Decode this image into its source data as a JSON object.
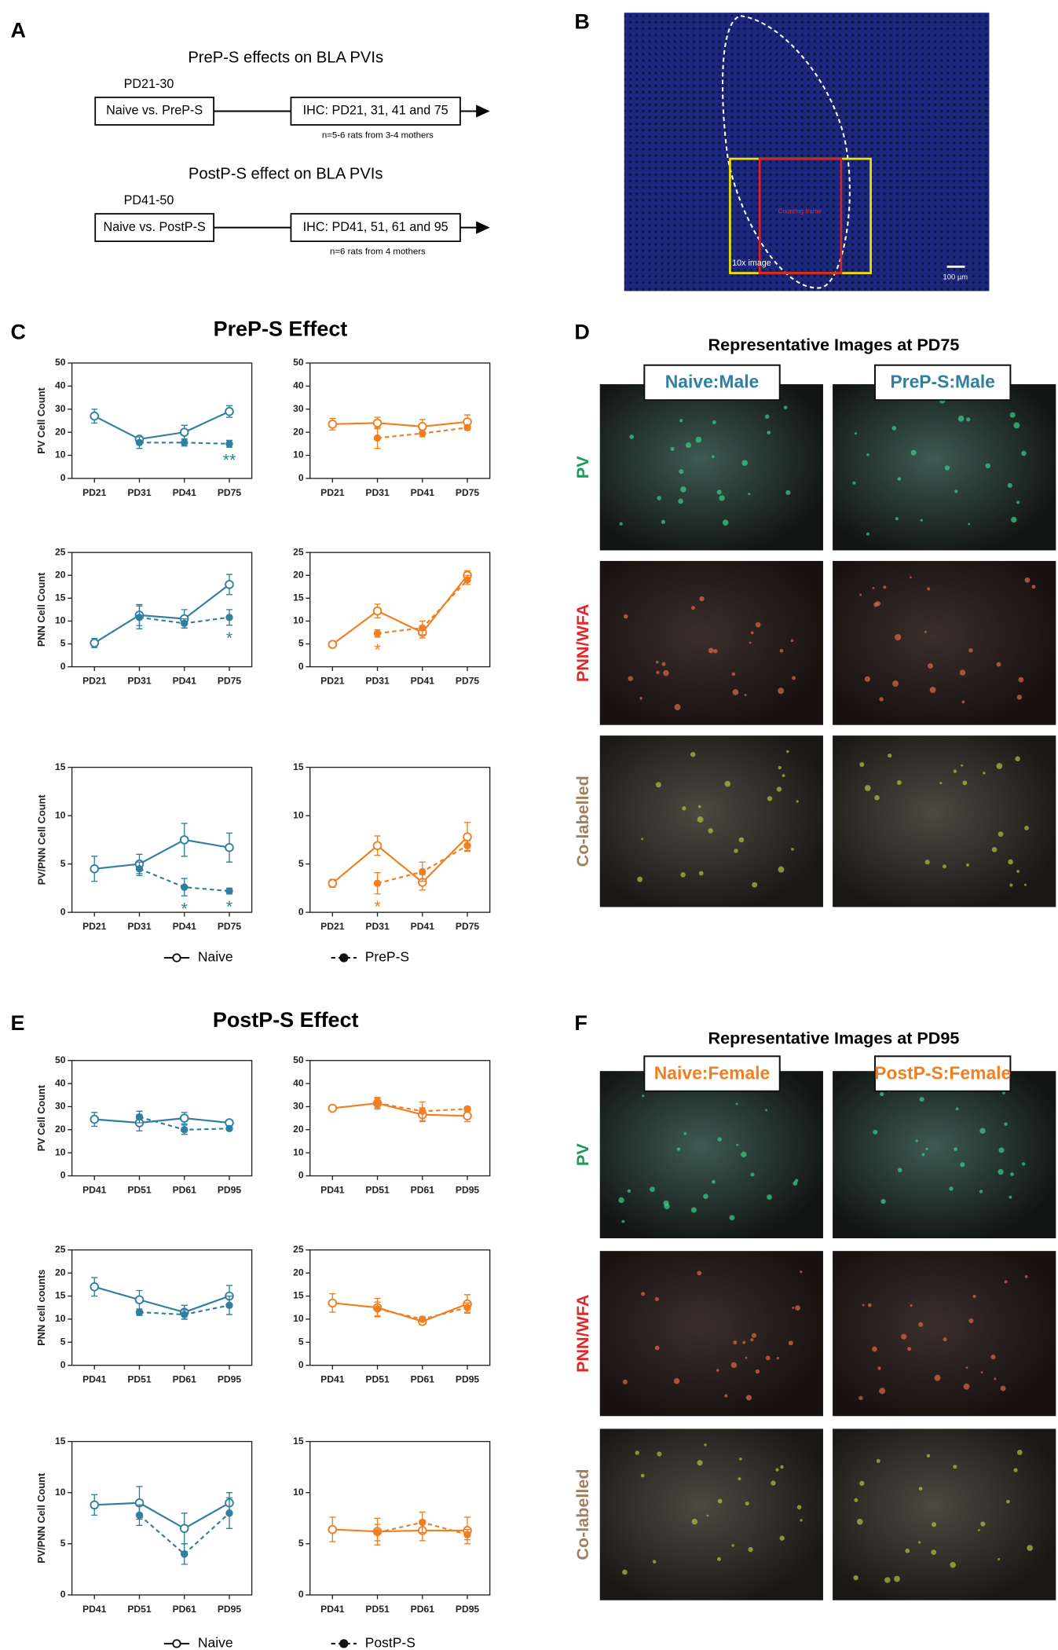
{
  "panel_labels": [
    "A",
    "B",
    "C",
    "D",
    "E",
    "F"
  ],
  "diagram_a": {
    "blocks": [
      {
        "title": "PreP-S effects on BLA PVIs",
        "period": "PD21-30",
        "group": "Naive vs. PreP-S",
        "ihc": "IHC: PD21, 31, 41 and 75",
        "n": "n=5-6 rats from 3-4 mothers"
      },
      {
        "title": "PostP-S effect on BLA PVIs",
        "period": "PD41-50",
        "group": "Naive vs. PostP-S",
        "ihc": "IHC: PD41, 51, 61 and 95",
        "n": "n=6 rats from 4 mothers"
      }
    ]
  },
  "image_b": {
    "frame_label": "Counting frame",
    "image_label": "10x image",
    "scale_label": "100 µm"
  },
  "section_titles": {
    "c": "PreP-S Effect",
    "e": "PostP-S Effect"
  },
  "legends": [
    {
      "items": [
        {
          "label": "Naive",
          "marker": "open",
          "dash": false
        },
        {
          "label": "PreP-S",
          "marker": "filled",
          "dash": true
        }
      ]
    },
    {
      "items": [
        {
          "label": "Naive",
          "marker": "open",
          "dash": false
        },
        {
          "label": "PostP-S",
          "marker": "filled",
          "dash": true
        }
      ]
    }
  ],
  "panel_d": {
    "title": "Representative Images at PD75",
    "columns": [
      "Naive:Male",
      "PreP-S:Male"
    ],
    "column_color": "#2f7fa0",
    "rows": [
      "PV",
      "PNN/WFA",
      "Co-labelled"
    ]
  },
  "panel_f": {
    "title": "Representative Images at PD95",
    "columns": [
      "Naive:Female",
      "PostP-S:Female"
    ],
    "column_color": "#f07f22",
    "rows": [
      "PV",
      "PNN/WFA",
      "Co-labelled"
    ]
  },
  "chart_data": [
    {
      "type": "line",
      "ylabel": "PV Cell Count",
      "categories": [
        "PD21",
        "PD31",
        "PD41",
        "PD75"
      ],
      "ylim": [
        0,
        50
      ],
      "yticks": [
        0,
        10,
        20,
        30,
        40,
        50
      ],
      "series": [
        {
          "color": "#2f7fa0",
          "marker": "open",
          "dash": false,
          "values": [
            27,
            17,
            20,
            29
          ],
          "errors": [
            3,
            1,
            3,
            2.5
          ]
        },
        {
          "color": "#2f7fa0",
          "marker": "filled",
          "dash": true,
          "values": [
            null,
            15.5,
            15.5,
            15
          ],
          "errors": [
            null,
            2.5,
            1.5,
            1.5
          ]
        }
      ],
      "annotations": [
        {
          "text": "**",
          "category": 3
        }
      ]
    },
    {
      "type": "line",
      "categories": [
        "PD21",
        "PD31",
        "PD41",
        "PD75"
      ],
      "ylim": [
        0,
        50
      ],
      "yticks": [
        0,
        10,
        20,
        30,
        40,
        50
      ],
      "series": [
        {
          "color": "#f07f22",
          "marker": "open",
          "dash": false,
          "values": [
            23.5,
            24,
            22.5,
            24.5
          ],
          "errors": [
            2.5,
            2.5,
            3,
            3
          ]
        },
        {
          "color": "#f07f22",
          "marker": "filled",
          "dash": true,
          "values": [
            null,
            17.5,
            19.5,
            22
          ],
          "errors": [
            null,
            4.5,
            1.5,
            1
          ]
        }
      ],
      "annotations": []
    },
    {
      "type": "line",
      "ylabel": "PNN Cell Count",
      "categories": [
        "PD21",
        "PD31",
        "PD41",
        "PD75"
      ],
      "ylim": [
        0,
        25
      ],
      "yticks": [
        0,
        5,
        10,
        15,
        20,
        25
      ],
      "series": [
        {
          "color": "#2f7fa0",
          "marker": "open",
          "dash": false,
          "values": [
            5.2,
            11.3,
            10.5,
            18
          ],
          "errors": [
            1,
            2.3,
            2,
            2.2
          ]
        },
        {
          "color": "#2f7fa0",
          "marker": "filled",
          "dash": true,
          "values": [
            null,
            10.8,
            9.5,
            10.8
          ],
          "errors": [
            null,
            2.5,
            1,
            1.7
          ]
        }
      ],
      "annotations": [
        {
          "text": "*",
          "category": 3
        }
      ]
    },
    {
      "type": "line",
      "categories": [
        "PD21",
        "PD31",
        "PD41",
        "PD75"
      ],
      "ylim": [
        0,
        25
      ],
      "yticks": [
        0,
        5,
        10,
        15,
        20,
        25
      ],
      "series": [
        {
          "color": "#f07f22",
          "marker": "open",
          "dash": false,
          "values": [
            4.9,
            12.2,
            7.5,
            20
          ],
          "errors": [
            0.5,
            1.5,
            1.2,
            1
          ]
        },
        {
          "color": "#f07f22",
          "marker": "filled",
          "dash": true,
          "values": [
            null,
            7.3,
            8.5,
            19
          ],
          "errors": [
            null,
            0.8,
            1.5,
            1
          ]
        }
      ],
      "annotations": [
        {
          "text": "*",
          "category": 1
        }
      ]
    },
    {
      "type": "line",
      "ylabel": "PV/PNN Cell Count",
      "categories": [
        "PD21",
        "PD31",
        "PD41",
        "PD75"
      ],
      "ylim": [
        0,
        15
      ],
      "yticks": [
        0,
        5,
        10,
        15
      ],
      "series": [
        {
          "color": "#2f7fa0",
          "marker": "open",
          "dash": false,
          "values": [
            4.5,
            5,
            7.5,
            6.7
          ],
          "errors": [
            1.3,
            1,
            1.7,
            1.5
          ]
        },
        {
          "color": "#2f7fa0",
          "marker": "filled",
          "dash": true,
          "values": [
            null,
            4.5,
            2.6,
            2.2
          ],
          "errors": [
            null,
            0.7,
            0.9,
            0.3
          ]
        }
      ],
      "annotations": [
        {
          "text": "*",
          "category": 2
        },
        {
          "text": "*",
          "category": 3
        }
      ]
    },
    {
      "type": "line",
      "categories": [
        "PD21",
        "PD31",
        "PD41",
        "PD75"
      ],
      "ylim": [
        0,
        15
      ],
      "yticks": [
        0,
        5,
        10,
        15
      ],
      "series": [
        {
          "color": "#f07f22",
          "marker": "open",
          "dash": false,
          "values": [
            3,
            6.9,
            3.1,
            7.8
          ],
          "errors": [
            0.4,
            1,
            0.8,
            1.5
          ]
        },
        {
          "color": "#f07f22",
          "marker": "filled",
          "dash": true,
          "values": [
            null,
            3,
            4.2,
            6.9
          ],
          "errors": [
            null,
            1.1,
            1,
            0.5
          ]
        }
      ],
      "annotations": [
        {
          "text": "*",
          "category": 1
        }
      ]
    },
    {
      "type": "line",
      "ylabel": "PV Cell Count",
      "categories": [
        "PD41",
        "PD51",
        "PD61",
        "PD95"
      ],
      "ylim": [
        0,
        50
      ],
      "yticks": [
        0,
        10,
        20,
        30,
        40,
        50
      ],
      "series": [
        {
          "color": "#2f7fa0",
          "marker": "open",
          "dash": false,
          "values": [
            24.5,
            23,
            25,
            23
          ],
          "errors": [
            3,
            3.5,
            2.5,
            0.5
          ]
        },
        {
          "color": "#2f7fa0",
          "marker": "filled",
          "dash": true,
          "values": [
            null,
            25.5,
            20,
            20.5
          ],
          "errors": [
            null,
            2.5,
            2,
            0.5
          ]
        }
      ],
      "annotations": []
    },
    {
      "type": "line",
      "categories": [
        "PD41",
        "PD51",
        "PD61",
        "PD95"
      ],
      "ylim": [
        0,
        50
      ],
      "yticks": [
        0,
        10,
        20,
        30,
        40,
        50
      ],
      "series": [
        {
          "color": "#f07f22",
          "marker": "open",
          "dash": false,
          "values": [
            29.3,
            31.5,
            26.5,
            26
          ],
          "errors": [
            0.5,
            2.5,
            3,
            2.5
          ]
        },
        {
          "color": "#f07f22",
          "marker": "filled",
          "dash": true,
          "values": [
            null,
            31.5,
            28,
            29
          ],
          "errors": [
            null,
            2,
            4,
            1
          ]
        }
      ],
      "annotations": []
    },
    {
      "type": "line",
      "ylabel": "PNN cell counts",
      "categories": [
        "PD41",
        "PD51",
        "PD61",
        "PD95"
      ],
      "ylim": [
        0,
        25
      ],
      "yticks": [
        0,
        5,
        10,
        15,
        20,
        25
      ],
      "series": [
        {
          "color": "#2f7fa0",
          "marker": "open",
          "dash": false,
          "values": [
            17,
            14.2,
            11.5,
            15
          ],
          "errors": [
            2,
            2,
            1.5,
            2.3
          ]
        },
        {
          "color": "#2f7fa0",
          "marker": "filled",
          "dash": true,
          "values": [
            null,
            11.5,
            11,
            13
          ],
          "errors": [
            null,
            0.7,
            1,
            2
          ]
        }
      ],
      "annotations": []
    },
    {
      "type": "line",
      "categories": [
        "PD41",
        "PD51",
        "PD61",
        "PD95"
      ],
      "ylim": [
        0,
        25
      ],
      "yticks": [
        0,
        5,
        10,
        15,
        20,
        25
      ],
      "series": [
        {
          "color": "#f07f22",
          "marker": "open",
          "dash": false,
          "values": [
            13.5,
            12.5,
            9.5,
            13.3
          ],
          "errors": [
            2,
            2,
            0.7,
            2
          ]
        },
        {
          "color": "#f07f22",
          "marker": "filled",
          "dash": true,
          "values": [
            null,
            12.2,
            10,
            12.5
          ],
          "errors": [
            null,
            1.5,
            0.5,
            1
          ]
        }
      ],
      "annotations": []
    },
    {
      "type": "line",
      "ylabel": "PV/PNN Cell Count",
      "categories": [
        "PD41",
        "PD51",
        "PD61",
        "PD95"
      ],
      "ylim": [
        0,
        15
      ],
      "yticks": [
        0,
        5,
        10,
        15
      ],
      "series": [
        {
          "color": "#2f7fa0",
          "marker": "open",
          "dash": false,
          "values": [
            8.8,
            9,
            6.5,
            9
          ],
          "errors": [
            1,
            1.6,
            1.5,
            1
          ]
        },
        {
          "color": "#2f7fa0",
          "marker": "filled",
          "dash": true,
          "values": [
            null,
            7.8,
            4,
            8
          ],
          "errors": [
            null,
            1,
            1,
            1.5
          ]
        }
      ],
      "annotations": []
    },
    {
      "type": "line",
      "categories": [
        "PD41",
        "PD51",
        "PD61",
        "PD95"
      ],
      "ylim": [
        0,
        15
      ],
      "yticks": [
        0,
        5,
        10,
        15
      ],
      "series": [
        {
          "color": "#f07f22",
          "marker": "open",
          "dash": false,
          "values": [
            6.4,
            6.2,
            6.3,
            6.3
          ],
          "errors": [
            1.2,
            1.3,
            1,
            1.3
          ]
        },
        {
          "color": "#f07f22",
          "marker": "filled",
          "dash": true,
          "values": [
            null,
            6.1,
            7.1,
            5.9
          ],
          "errors": [
            null,
            0.8,
            1,
            0.5
          ]
        }
      ],
      "annotations": []
    }
  ]
}
